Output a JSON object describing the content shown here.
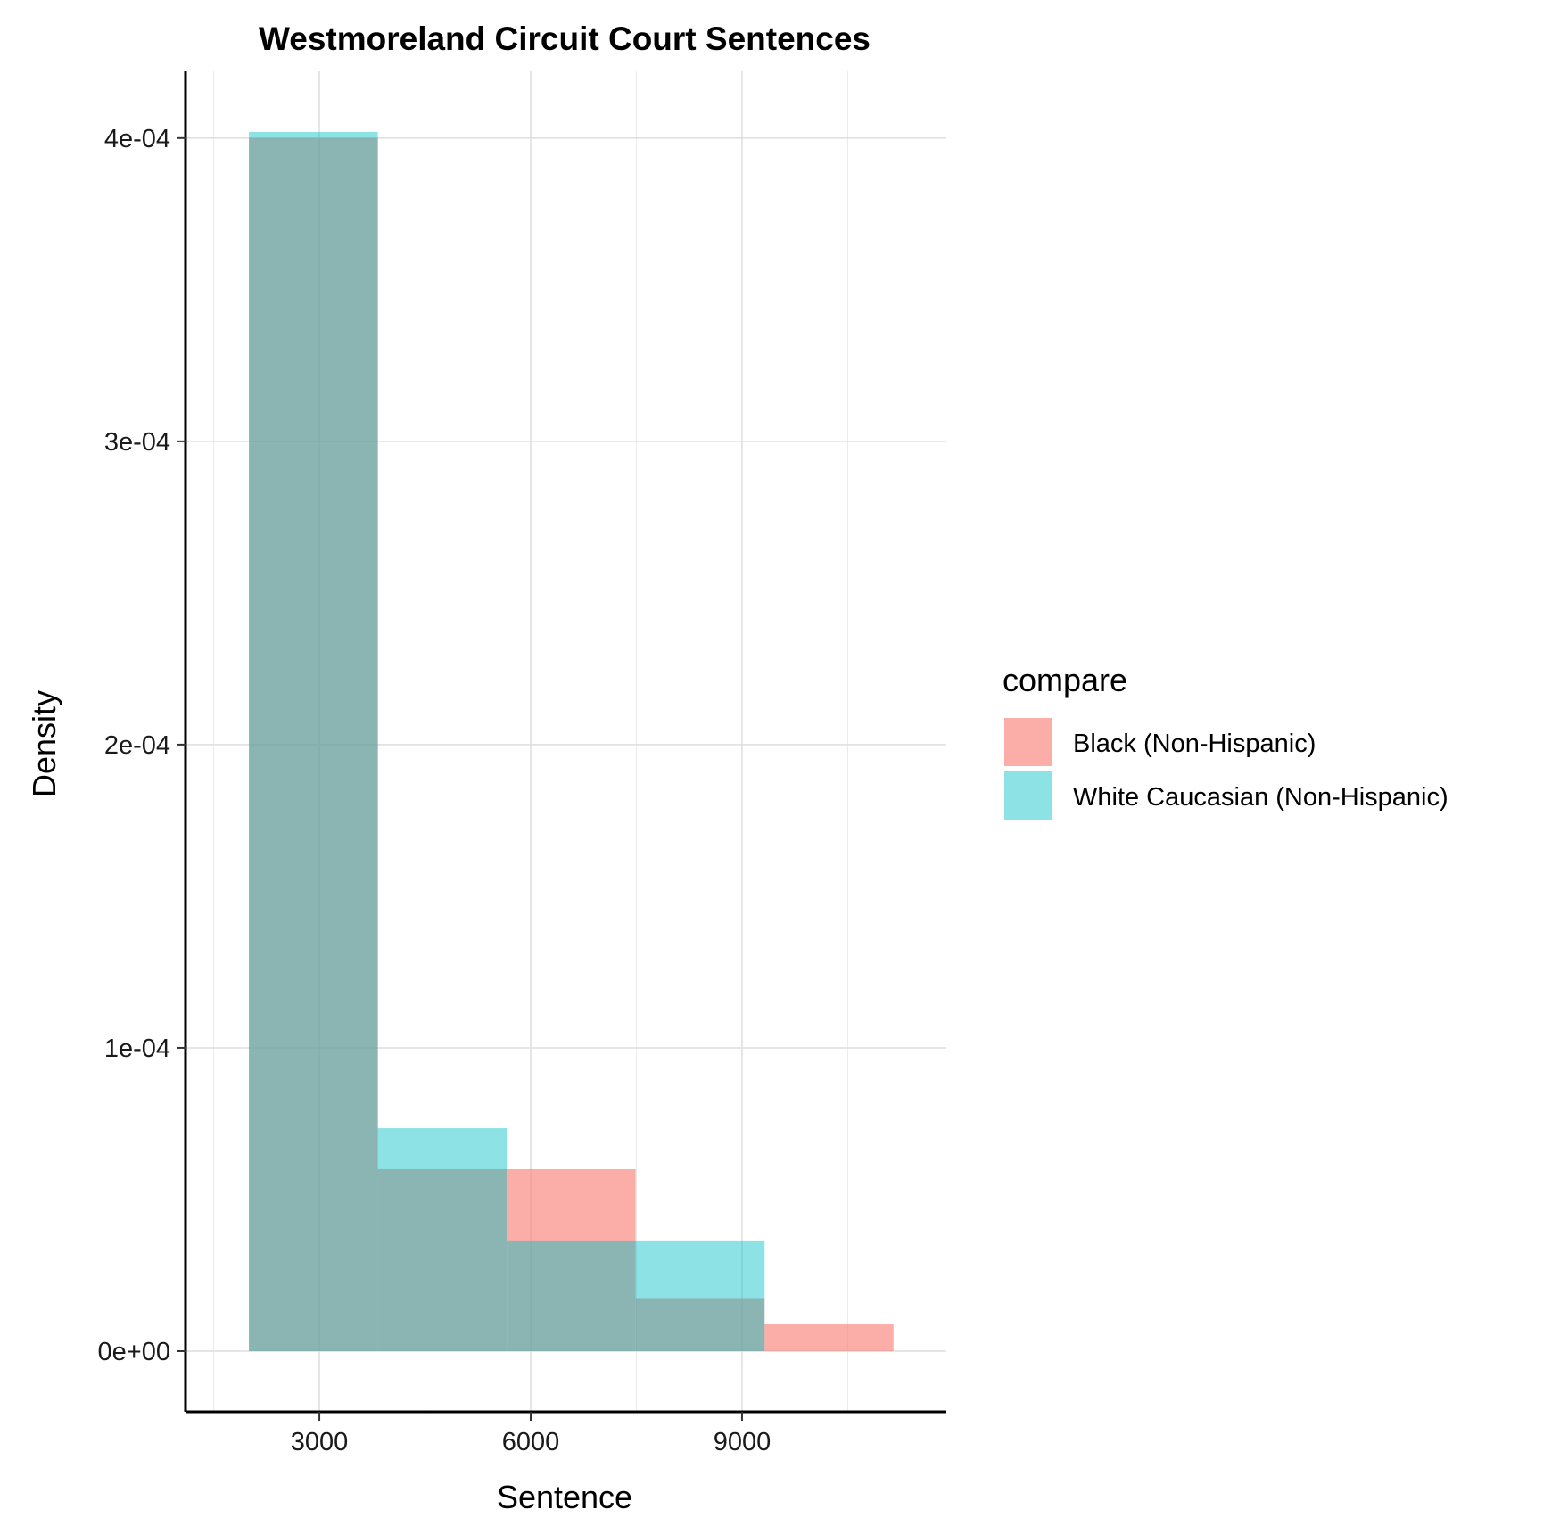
{
  "chart_data": {
    "type": "bar",
    "subtype": "overlapping-histogram",
    "title": "Westmoreland Circuit Court Sentences",
    "xlabel": "Sentence",
    "ylabel": "Density",
    "xlim": [
      1100,
      11900
    ],
    "ylim": [
      -2e-05,
      0.000422
    ],
    "x_ticks": [
      3000,
      6000,
      9000
    ],
    "x_tick_labels": [
      "3000",
      "6000",
      "9000"
    ],
    "y_ticks": [
      0,
      0.0001,
      0.0002,
      0.0003,
      0.0004
    ],
    "y_tick_labels": [
      "0e+00",
      "1e-04",
      "2e-04",
      "3e-04",
      "4e-04"
    ],
    "grid": true,
    "bins": [
      [
        2000,
        3830
      ],
      [
        3830,
        5660
      ],
      [
        5660,
        7490
      ],
      [
        7490,
        9320
      ],
      [
        9320,
        11150
      ]
    ],
    "legend": {
      "title": "compare",
      "position": "right"
    },
    "series": [
      {
        "name": "Black (Non-Hispanic)",
        "color": "#F8766D",
        "opacity": 0.6,
        "values": [
          0.0004,
          6e-05,
          6e-05,
          1.75e-05,
          8.8e-06
        ]
      },
      {
        "name": "White Caucasian (Non-Hispanic)",
        "color": "#00BFC4",
        "opacity": 0.45,
        "values": [
          0.000402,
          7.35e-05,
          3.65e-05,
          3.65e-05,
          0
        ]
      }
    ]
  }
}
